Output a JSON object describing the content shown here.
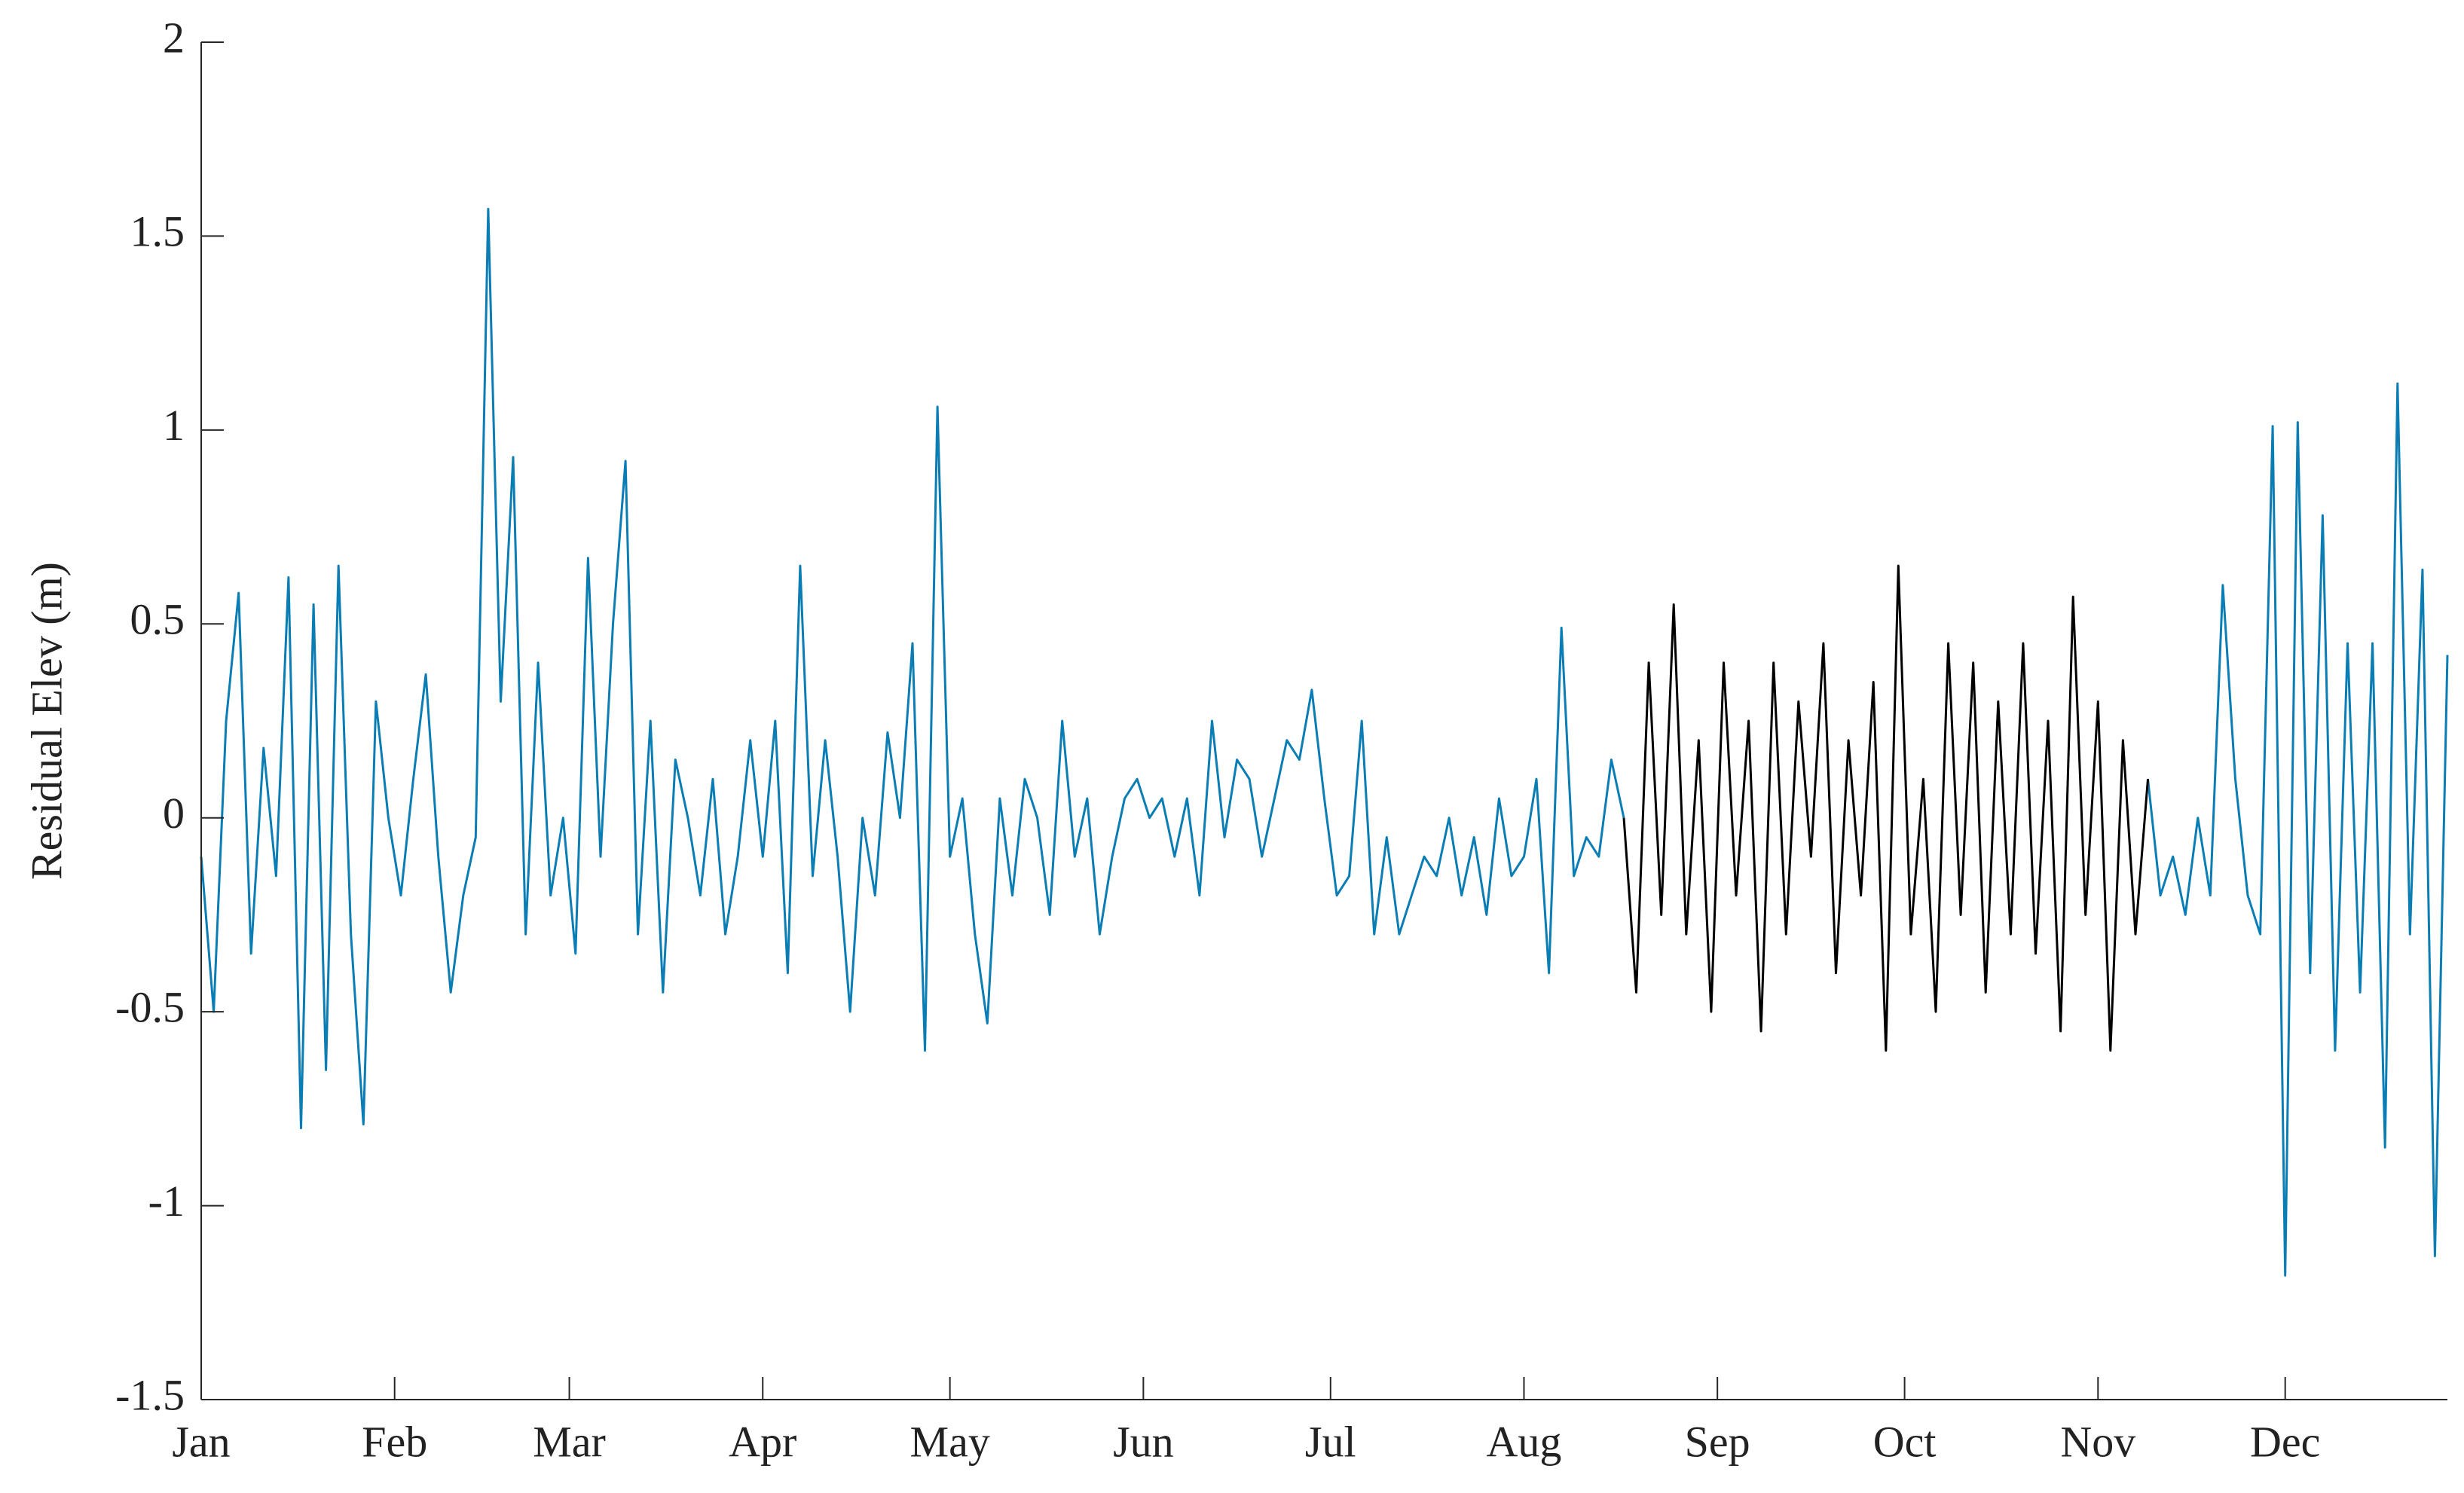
{
  "chart_data": {
    "type": "line",
    "ylabel": "Residual Elev (m)",
    "xlim": [
      0,
      360
    ],
    "xticks": [
      {
        "value": 0,
        "label": "Jan"
      },
      {
        "value": 31,
        "label": "Feb"
      },
      {
        "value": 59,
        "label": "Mar"
      },
      {
        "value": 90,
        "label": "Apr"
      },
      {
        "value": 120,
        "label": "May"
      },
      {
        "value": 151,
        "label": "Jun"
      },
      {
        "value": 181,
        "label": "Jul"
      },
      {
        "value": 212,
        "label": "Aug"
      },
      {
        "value": 243,
        "label": "Sep"
      },
      {
        "value": 273,
        "label": "Oct"
      },
      {
        "value": 304,
        "label": "Nov"
      },
      {
        "value": 334,
        "label": "Dec"
      }
    ],
    "ylim": [
      -1.5,
      2
    ],
    "yticks": [
      -1.5,
      -1,
      -0.5,
      0,
      0.5,
      1,
      1.5,
      2
    ],
    "x": [
      0,
      2,
      4,
      6,
      8,
      10,
      12,
      14,
      16,
      18,
      20,
      22,
      24,
      26,
      28,
      30,
      32,
      34,
      36,
      38,
      40,
      42,
      44,
      46,
      48,
      50,
      52,
      54,
      56,
      58,
      60,
      62,
      64,
      66,
      68,
      70,
      72,
      74,
      76,
      78,
      80,
      82,
      84,
      86,
      88,
      90,
      92,
      94,
      96,
      98,
      100,
      102,
      104,
      106,
      108,
      110,
      112,
      114,
      116,
      118,
      120,
      122,
      124,
      126,
      128,
      130,
      132,
      134,
      136,
      138,
      140,
      142,
      144,
      146,
      148,
      150,
      152,
      154,
      156,
      158,
      160,
      162,
      164,
      166,
      168,
      170,
      172,
      174,
      176,
      178,
      180,
      182,
      184,
      186,
      188,
      190,
      192,
      194,
      196,
      198,
      200,
      202,
      204,
      206,
      208,
      210,
      212,
      214,
      216,
      218,
      220,
      222,
      224,
      226,
      228,
      230,
      232,
      234,
      236,
      238,
      240,
      242,
      244,
      246,
      248,
      250,
      252,
      254,
      256,
      258,
      260,
      262,
      264,
      266,
      268,
      270,
      272,
      274,
      276,
      278,
      280,
      282,
      284,
      286,
      288,
      290,
      292,
      294,
      296,
      298,
      300,
      302,
      304,
      306,
      308,
      310,
      312,
      314,
      316,
      318,
      320,
      322,
      324,
      326,
      328,
      330,
      332,
      334,
      336,
      338,
      340,
      342,
      344,
      346,
      348,
      350,
      352,
      354,
      356,
      358,
      360
    ],
    "series": [
      {
        "color": "#0a7db4",
        "values": [
          -0.1,
          -0.5,
          0.25,
          0.58,
          -0.35,
          0.18,
          -0.15,
          0.62,
          -0.8,
          0.55,
          -0.65,
          0.65,
          -0.3,
          -0.79,
          0.3,
          0.0,
          -0.2,
          0.1,
          0.37,
          -0.1,
          -0.45,
          -0.2,
          -0.05,
          1.57,
          0.3,
          0.93,
          -0.3,
          0.4,
          -0.2,
          0.0,
          -0.35,
          0.67,
          -0.1,
          0.5,
          0.92,
          -0.3,
          0.25,
          -0.45,
          0.15,
          0.0,
          -0.2,
          0.1,
          -0.3,
          -0.1,
          0.2,
          -0.1,
          0.25,
          -0.4,
          0.65,
          -0.15,
          0.2,
          -0.1,
          -0.5,
          0.0,
          -0.2,
          0.22,
          0.0,
          0.45,
          -0.6,
          1.06,
          -0.1,
          0.05,
          -0.3,
          -0.53,
          0.05,
          -0.2,
          0.1,
          0.0,
          -0.25,
          0.25,
          -0.1,
          0.05,
          -0.3,
          -0.1,
          0.05,
          0.1,
          0.0,
          0.05,
          -0.1,
          0.05,
          -0.2,
          0.25,
          -0.05,
          0.15,
          0.1,
          -0.1,
          0.05,
          0.2,
          0.15,
          0.33,
          0.05,
          -0.2,
          -0.15,
          0.25,
          -0.3,
          -0.05,
          -0.3,
          -0.2,
          -0.1,
          -0.15,
          0.0,
          -0.2,
          -0.05,
          -0.25,
          0.05,
          -0.15,
          -0.1,
          0.1,
          -0.4,
          0.49,
          -0.15,
          -0.05,
          -0.1,
          0.15,
          0.0,
          null,
          null,
          null,
          null,
          null,
          null,
          null,
          null,
          null,
          null,
          null,
          null,
          null,
          null,
          null,
          null,
          null,
          null,
          null,
          null,
          null,
          null,
          null,
          null,
          null,
          null,
          null,
          null,
          null,
          null,
          null,
          null,
          null,
          null,
          null,
          null,
          null,
          null,
          null,
          null,
          null,
          0.1,
          -0.2,
          -0.1,
          -0.25,
          0.0,
          -0.2,
          0.6,
          0.1,
          -0.2,
          -0.3,
          1.01,
          -1.18,
          1.02,
          -0.4,
          0.78,
          -0.6,
          0.45,
          -0.45,
          0.45,
          -0.85,
          1.12,
          -0.3,
          0.64,
          -1.13,
          0.42
        ]
      },
      {
        "color": "#000000",
        "values": [
          null,
          null,
          null,
          null,
          null,
          null,
          null,
          null,
          null,
          null,
          null,
          null,
          null,
          null,
          null,
          null,
          null,
          null,
          null,
          null,
          null,
          null,
          null,
          null,
          null,
          null,
          null,
          null,
          null,
          null,
          null,
          null,
          null,
          null,
          null,
          null,
          null,
          null,
          null,
          null,
          null,
          null,
          null,
          null,
          null,
          null,
          null,
          null,
          null,
          null,
          null,
          null,
          null,
          null,
          null,
          null,
          null,
          null,
          null,
          null,
          null,
          null,
          null,
          null,
          null,
          null,
          null,
          null,
          null,
          null,
          null,
          null,
          null,
          null,
          null,
          null,
          null,
          null,
          null,
          null,
          null,
          null,
          null,
          null,
          null,
          null,
          null,
          null,
          null,
          null,
          null,
          null,
          null,
          null,
          null,
          null,
          null,
          null,
          null,
          null,
          null,
          null,
          null,
          null,
          null,
          null,
          null,
          null,
          null,
          null,
          null,
          null,
          null,
          null,
          0.0,
          -0.45,
          0.4,
          -0.25,
          0.55,
          -0.3,
          0.2,
          -0.5,
          0.4,
          -0.2,
          0.25,
          -0.55,
          0.4,
          -0.3,
          0.3,
          -0.1,
          0.45,
          -0.4,
          0.2,
          -0.2,
          0.35,
          -0.6,
          0.65,
          -0.3,
          0.1,
          -0.5,
          0.45,
          -0.25,
          0.4,
          -0.45,
          0.3,
          -0.3,
          0.45,
          -0.35,
          0.25,
          -0.55,
          0.57,
          -0.25,
          0.3,
          -0.6,
          0.2,
          -0.3,
          0.1,
          null,
          null,
          null,
          null,
          null,
          null,
          null,
          null,
          null,
          null,
          null,
          null,
          null,
          null,
          null,
          null,
          null,
          null,
          null,
          null,
          null,
          null,
          null,
          null
        ]
      }
    ]
  }
}
